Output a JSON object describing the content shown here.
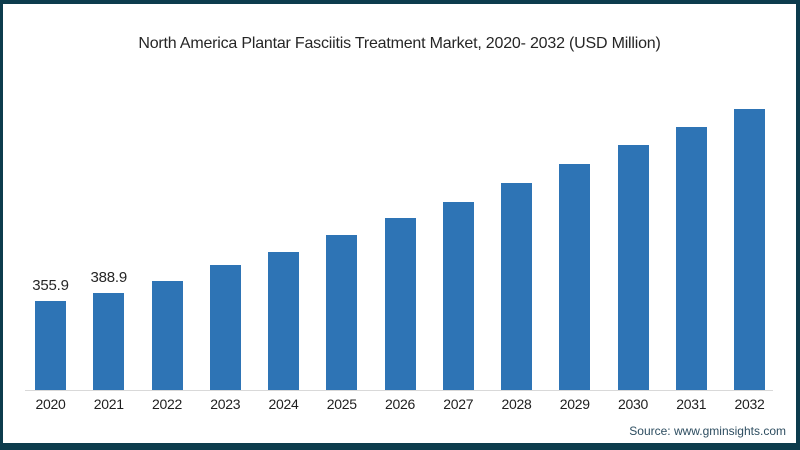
{
  "frame": {
    "border_color": "#0d3c4d",
    "background_color": "#ffffff"
  },
  "source_credit": "Source: www.gminsights.com",
  "chart_data": {
    "type": "bar",
    "title": "North America Plantar Fasciitis Treatment Market, 2020- 2032 (USD Million)",
    "categories": [
      "2020",
      "2021",
      "2022",
      "2023",
      "2024",
      "2025",
      "2026",
      "2027",
      "2028",
      "2029",
      "2030",
      "2031",
      "2032"
    ],
    "values": [
      355.9,
      388.9,
      436,
      499,
      553,
      620,
      690,
      752,
      827,
      905,
      979,
      1051,
      1124
    ],
    "data_labels": [
      "355.9",
      "388.9",
      "",
      "",
      "",
      "",
      "",
      "",
      "",
      "",
      "",
      "",
      ""
    ],
    "xlabel": "",
    "ylabel": "",
    "ylim": [
      0,
      1124
    ],
    "grid": false,
    "legend": false,
    "bar_color": "#2e74b5",
    "axis_line_color": "#d9d9d9",
    "label_color": "#262626"
  }
}
